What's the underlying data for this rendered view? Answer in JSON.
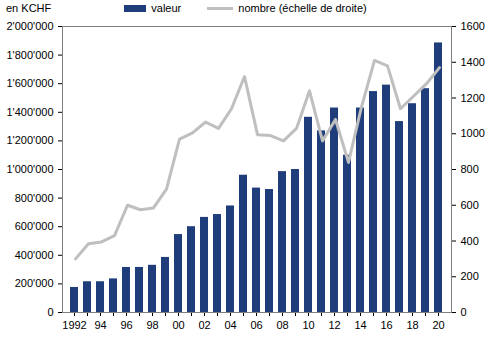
{
  "chart_data": {
    "type": "bar",
    "y_label": "en KCHF",
    "categories": [
      "1992",
      null,
      "94",
      null,
      "96",
      null,
      "98",
      null,
      "00",
      null,
      "02",
      null,
      "04",
      null,
      "06",
      null,
      "08",
      null,
      "10",
      null,
      "12",
      null,
      "14",
      null,
      "16",
      null,
      "18",
      null,
      "20"
    ],
    "series": [
      {
        "name": "valeur",
        "type": "bar",
        "color": "#1f3d7a",
        "values": [
          175000,
          215000,
          215000,
          235000,
          315000,
          315000,
          330000,
          385000,
          545000,
          600000,
          665000,
          685000,
          745000,
          960000,
          870000,
          860000,
          985000,
          1000000,
          1365000,
          1270000,
          1430000,
          1100000,
          1430000,
          1545000,
          1590000,
          1335000,
          1460000,
          1565000,
          1885000
        ]
      },
      {
        "name": "nombre (échelle de droite)",
        "type": "line",
        "axis": "y2",
        "color": "#bfbfbf",
        "values": [
          300,
          385,
          395,
          430,
          600,
          575,
          585,
          690,
          970,
          1005,
          1065,
          1030,
          1140,
          1320,
          995,
          990,
          960,
          1030,
          1240,
          960,
          1080,
          840,
          1150,
          1410,
          1380,
          1140,
          1210,
          1280,
          1370
        ]
      }
    ],
    "ylim": [
      0,
      2000000
    ],
    "yticks": [
      0,
      {
        "value": 200000,
        "label": "200'000"
      },
      {
        "value": 400000,
        "label": "400'000"
      },
      {
        "value": 600000,
        "label": "600'000"
      },
      {
        "value": 800000,
        "label": "800'000"
      },
      {
        "value": 1000000,
        "label": "1'000'000"
      },
      {
        "value": 1200000,
        "label": "1'200'000"
      },
      {
        "value": 1400000,
        "label": "1'400'000"
      },
      {
        "value": 1600000,
        "label": "1'600'000"
      },
      {
        "value": 1800000,
        "label": "1'800'000"
      },
      {
        "value": 2000000,
        "label": "2'000'000"
      }
    ],
    "y2lim": [
      0,
      1600
    ],
    "y2ticks": [
      0,
      200,
      400,
      600,
      800,
      1000,
      1200,
      1400,
      1600
    ],
    "legend": "top"
  }
}
